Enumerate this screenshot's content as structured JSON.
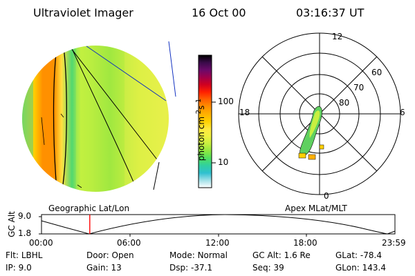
{
  "header": {
    "title": "Ultraviolet Imager",
    "date": "16 Oct 00",
    "time": "03:16:37 UT"
  },
  "colorbar": {
    "unit": "photon cm^-2 s^-1",
    "ticks": [
      {
        "label": "100",
        "value": 100
      },
      {
        "label": "10",
        "value": 10
      }
    ],
    "colors": [
      "#000000",
      "#3a0a4a",
      "#6a0a6a",
      "#a0004a",
      "#d00020",
      "#ff2000",
      "#ff6000",
      "#ff9000",
      "#ffb000",
      "#ffd000",
      "#ffe840",
      "#f0f040",
      "#c8f040",
      "#90e840",
      "#50e060",
      "#30d0a0",
      "#30c0d0",
      "#a0e0e8",
      "#ffffff"
    ]
  },
  "geo_panel": {
    "label": "Geographic Lat/Lon"
  },
  "polar_plot": {
    "label": "Apex MLat/MLT",
    "mlt_labels": [
      {
        "label": "12",
        "pos": "top"
      },
      {
        "label": "18",
        "pos": "left"
      },
      {
        "label": "6",
        "pos": "right"
      },
      {
        "label": "0",
        "pos": "bottom"
      }
    ],
    "lat_labels": [
      "60",
      "70",
      "80"
    ]
  },
  "timeline": {
    "ylabel": "GC Alt",
    "y_ticks": [
      "9.0",
      "1.8"
    ],
    "x_ticks": [
      "00:00",
      "06:00",
      "12:00",
      "18:00",
      "23:59"
    ],
    "marker_time": "03:16",
    "marker_fraction": 0.1366,
    "marker_color": "#ff0000"
  },
  "info": {
    "flt": {
      "label": "Flt:",
      "value": "LBHL"
    },
    "ip": {
      "label": "IP:",
      "value": "9.0"
    },
    "door": {
      "label": "Door:",
      "value": "Open"
    },
    "gain": {
      "label": "Gain:",
      "value": "13"
    },
    "mode": {
      "label": "Mode:",
      "value": "Normal"
    },
    "dsp": {
      "label": "Dsp:",
      "value": "-37.1"
    },
    "gcalt": {
      "label": "GC Alt:",
      "value": "1.6 Re"
    },
    "seq": {
      "label": "Seq:",
      "value": "39"
    },
    "glat": {
      "label": "GLat:",
      "value": "-78.4"
    },
    "glon": {
      "label": "GLon:",
      "value": "143.4"
    }
  }
}
